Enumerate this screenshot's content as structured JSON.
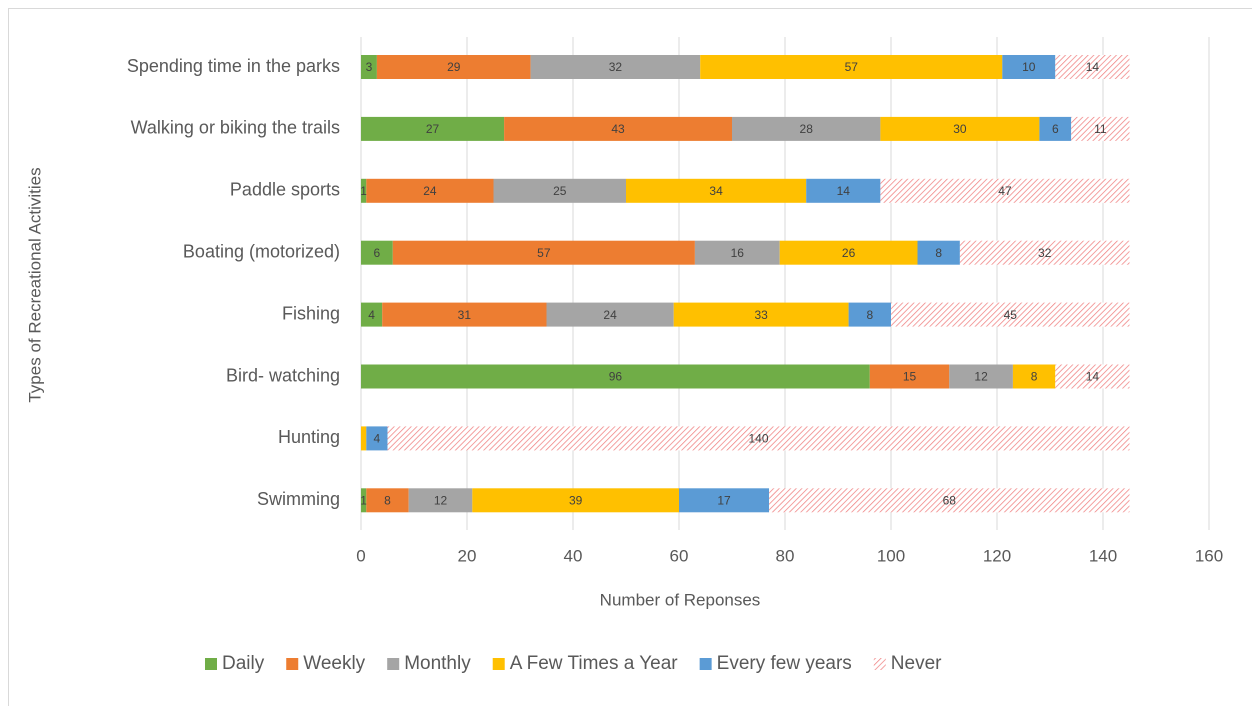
{
  "chart_data": {
    "type": "stacked-bar-horizontal",
    "x_label": "Number of Reponses",
    "y_label": "Types of Recreational Activities",
    "categories": [
      "Spending time in the parks",
      "Walking or biking the trails",
      "Paddle sports",
      "Boating (motorized)",
      "Fishing",
      "Bird- watching",
      "Hunting",
      "Swimming"
    ],
    "series": [
      {
        "name": "Daily",
        "color": "#70ad47",
        "values": [
          3,
          27,
          1,
          6,
          4,
          96,
          0,
          1
        ]
      },
      {
        "name": "Weekly",
        "color": "#ed7d31",
        "values": [
          29,
          43,
          24,
          57,
          31,
          15,
          0,
          8
        ]
      },
      {
        "name": "Monthly",
        "color": "#a5a5a5",
        "values": [
          32,
          28,
          25,
          16,
          24,
          12,
          0,
          12
        ]
      },
      {
        "name": "A Few Times a Year",
        "color": "#ffc000",
        "values": [
          57,
          30,
          34,
          26,
          33,
          8,
          1,
          39
        ],
        "value_labels": [
          "57",
          "30",
          "34",
          "26",
          "33",
          "8",
          null,
          "39"
        ]
      },
      {
        "name": "Every few years",
        "color": "#5b9bd5",
        "values": [
          10,
          6,
          14,
          8,
          8,
          0,
          4,
          17
        ]
      },
      {
        "name": "Never",
        "color": "#f08080",
        "pattern": "hatch",
        "values": [
          14,
          11,
          47,
          32,
          45,
          14,
          140,
          68
        ]
      }
    ],
    "xlim": [
      0,
      160
    ],
    "xticks": [
      0,
      20,
      40,
      60,
      80,
      100,
      120,
      140,
      160
    ],
    "grid": true,
    "legend": "bottom"
  }
}
